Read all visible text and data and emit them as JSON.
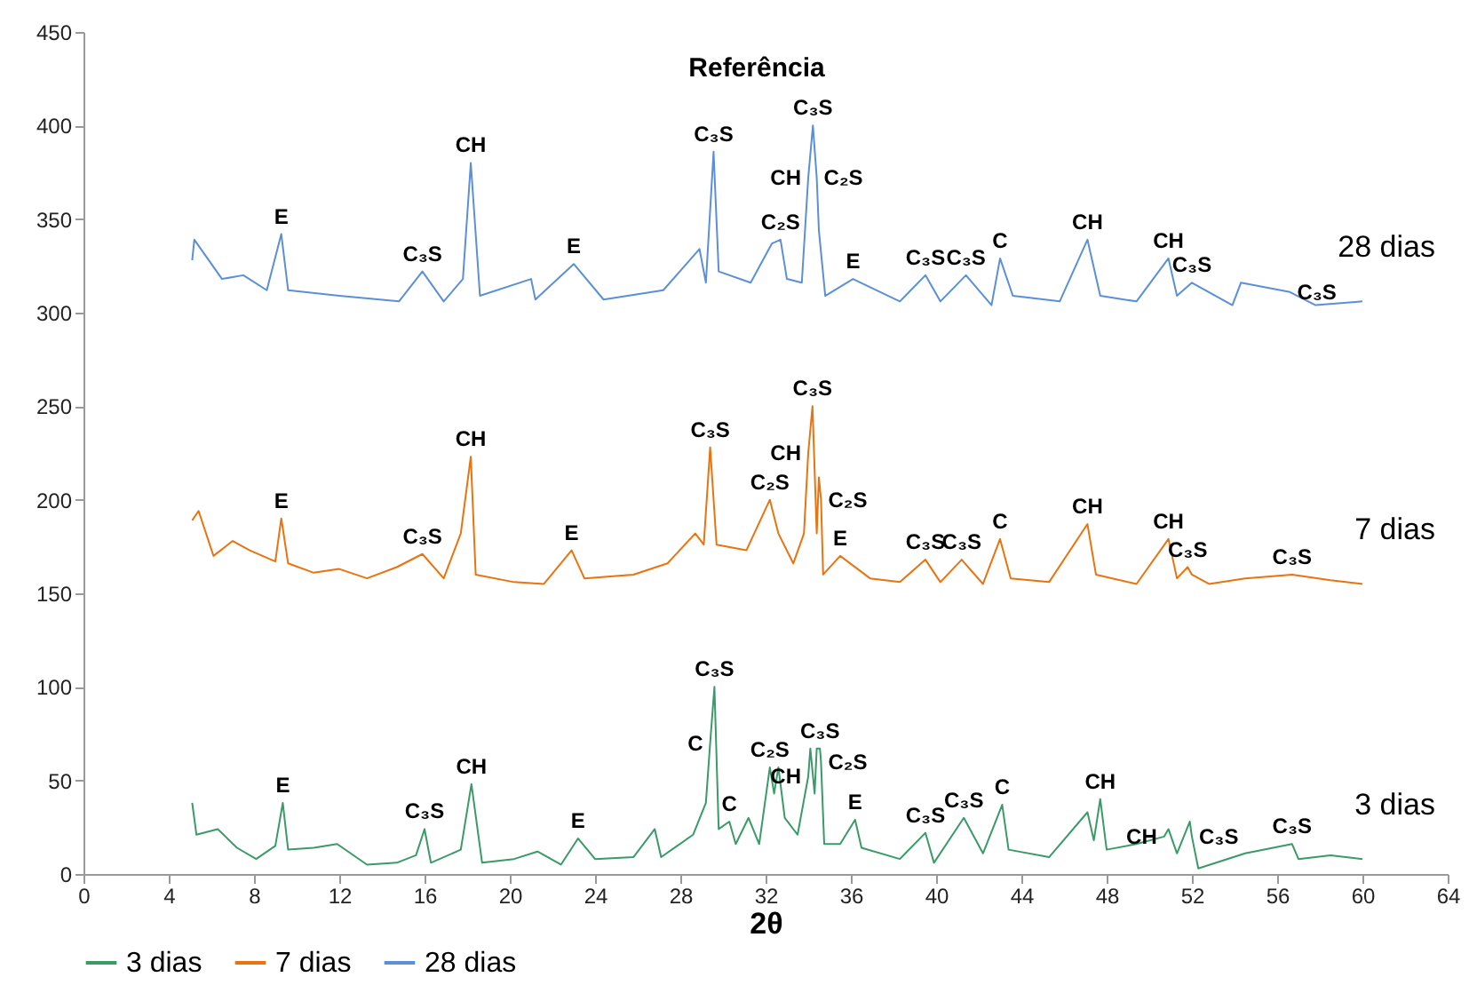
{
  "chart_data": {
    "type": "line",
    "title": "Referência",
    "xlabel": "2θ",
    "xlim": [
      0,
      64
    ],
    "xticks": [
      0,
      4,
      8,
      12,
      16,
      20,
      24,
      28,
      32,
      36,
      40,
      44,
      48,
      52,
      56,
      60,
      64
    ],
    "ylim": [
      0,
      450
    ],
    "yticks": [
      0,
      50,
      100,
      150,
      200,
      250,
      300,
      350,
      400,
      450
    ],
    "legend": "bottom",
    "series": [
      {
        "name": "3 dias",
        "color": "#3a9a68",
        "x": [
          5.1,
          5.3,
          6.3,
          7.2,
          8.1,
          9.0,
          9.35,
          9.6,
          10.8,
          11.9,
          13.3,
          14.7,
          15.6,
          16.0,
          16.3,
          17.7,
          18.2,
          18.7,
          20.2,
          21.3,
          22.4,
          23.2,
          24.0,
          25.8,
          26.8,
          27.1,
          28.6,
          29.2,
          29.4,
          29.6,
          29.8,
          30.3,
          30.6,
          31.2,
          31.7,
          32.2,
          32.4,
          32.6,
          32.9,
          33.5,
          34.0,
          34.1,
          34.3,
          34.4,
          34.55,
          34.6,
          34.75,
          35.5,
          36.2,
          36.5,
          38.3,
          39.5,
          39.9,
          41.3,
          42.2,
          43.1,
          43.4,
          45.3,
          47.1,
          47.4,
          47.7,
          48.0,
          49.4,
          50.7,
          50.9,
          51.3,
          51.9,
          52.0,
          52.3,
          54.5,
          56.7,
          57.0,
          58.5,
          60
        ],
        "values": [
          38,
          21,
          24,
          14,
          8,
          15,
          38,
          13,
          14,
          16,
          5,
          6,
          10,
          24,
          6,
          13,
          48,
          6,
          8,
          12,
          5,
          19,
          8,
          9,
          24,
          9,
          21,
          38,
          70,
          100,
          24,
          28,
          16,
          30,
          16,
          57,
          43,
          57,
          30,
          21,
          52,
          67,
          43,
          67,
          67,
          60,
          16,
          16,
          29,
          14,
          8,
          22,
          6,
          30,
          11,
          37,
          13,
          9,
          33,
          18,
          40,
          13,
          16,
          20,
          24,
          11,
          28,
          20,
          3,
          11,
          16,
          8,
          10,
          8
        ]
      },
      {
        "name": "7 dias",
        "color": "#e8730f",
        "x": [
          5.1,
          5.4,
          6.1,
          7.0,
          7.8,
          9.0,
          9.28,
          9.6,
          10.8,
          12.0,
          13.3,
          14.7,
          15.9,
          16.9,
          17.7,
          18.17,
          18.4,
          20.2,
          21.6,
          22.9,
          23.5,
          25.8,
          27.4,
          28.7,
          29.1,
          29.4,
          29.7,
          31.1,
          32.2,
          32.6,
          33.3,
          33.8,
          34.0,
          34.2,
          34.4,
          34.5,
          34.6,
          34.7,
          35.5,
          36.9,
          38.3,
          39.5,
          40.2,
          41.2,
          42.2,
          43.0,
          43.5,
          45.3,
          47.1,
          47.5,
          49.4,
          50.9,
          51.3,
          51.8,
          52.0,
          52.8,
          54.5,
          56.7,
          58.5,
          60
        ],
        "values": [
          189,
          194,
          170,
          178,
          173,
          167,
          190,
          166,
          161,
          163,
          158,
          164,
          171,
          158,
          182,
          223,
          160,
          156,
          155,
          173,
          158,
          160,
          166,
          182,
          176,
          228,
          176,
          173,
          200,
          182,
          166,
          182,
          225,
          250,
          182,
          212,
          200,
          160,
          170,
          158,
          156,
          168,
          156,
          168,
          155,
          179,
          158,
          156,
          187,
          160,
          155,
          179,
          158,
          164,
          160,
          155,
          158,
          160,
          157,
          155
        ]
      },
      {
        "name": "28 dias",
        "color": "#5b8fd6",
        "x": [
          5.1,
          5.2,
          6.5,
          7.5,
          8.6,
          9.28,
          9.6,
          12.0,
          14.8,
          15.9,
          16.9,
          17.8,
          18.17,
          18.6,
          21.0,
          21.2,
          23.0,
          24.4,
          27.2,
          28.9,
          29.2,
          29.56,
          29.8,
          31.3,
          32.3,
          32.7,
          33.0,
          33.7,
          34.0,
          34.22,
          34.4,
          34.5,
          34.8,
          36.1,
          38.3,
          39.5,
          40.2,
          41.4,
          42.6,
          43.0,
          43.6,
          45.8,
          47.1,
          47.7,
          49.4,
          50.9,
          51.3,
          52.0,
          53.9,
          54.3,
          56.6,
          57.8,
          60
        ],
        "values": [
          328,
          339,
          318,
          320,
          312,
          342,
          312,
          309,
          306,
          322,
          306,
          318,
          380,
          309,
          318,
          307,
          326,
          307,
          312,
          334,
          316,
          386,
          322,
          316,
          337,
          339,
          318,
          316,
          372,
          400,
          372,
          344,
          309,
          318,
          306,
          320,
          306,
          320,
          304,
          329,
          309,
          306,
          339,
          309,
          306,
          329,
          309,
          316,
          304,
          316,
          311,
          304,
          306
        ]
      }
    ],
    "annotations": [
      {
        "text": "E",
        "x": 9.28,
        "y": 342
      },
      {
        "text": "C₃S",
        "x": 15.9,
        "y": 322
      },
      {
        "text": "CH",
        "x": 18.17,
        "y": 380
      },
      {
        "text": "E",
        "x": 23.0,
        "y": 326
      },
      {
        "text": "C₃S",
        "x": 29.56,
        "y": 386
      },
      {
        "text": "C₂S",
        "x": 32.7,
        "y": 339
      },
      {
        "text": "CH",
        "x": 34.0,
        "y": 372
      },
      {
        "text": "C₃S",
        "x": 34.22,
        "y": 400
      },
      {
        "text": "C₂S",
        "x": 34.4,
        "y": 372
      },
      {
        "text": "E",
        "x": 36.1,
        "y": 318
      },
      {
        "text": "C₃S",
        "x": 39.5,
        "y": 320
      },
      {
        "text": "C₃S",
        "x": 41.4,
        "y": 320
      },
      {
        "text": "C",
        "x": 43.0,
        "y": 329
      },
      {
        "text": "CH",
        "x": 47.1,
        "y": 339
      },
      {
        "text": "CH",
        "x": 50.9,
        "y": 329
      },
      {
        "text": "C₃S",
        "x": 52.0,
        "y": 316
      },
      {
        "text": "C₃S",
        "x": 56.6,
        "y": 311
      },
      {
        "text": "E",
        "x": 9.28,
        "y": 190
      },
      {
        "text": "C₃S",
        "x": 15.9,
        "y": 171
      },
      {
        "text": "CH",
        "x": 18.17,
        "y": 223
      },
      {
        "text": "E",
        "x": 22.9,
        "y": 173
      },
      {
        "text": "C₃S",
        "x": 29.4,
        "y": 228
      },
      {
        "text": "C₂S",
        "x": 32.2,
        "y": 200
      },
      {
        "text": "CH",
        "x": 34.0,
        "y": 225
      },
      {
        "text": "C₃S",
        "x": 34.2,
        "y": 250
      },
      {
        "text": "C₂S",
        "x": 34.6,
        "y": 200
      },
      {
        "text": "E",
        "x": 35.5,
        "y": 170
      },
      {
        "text": "C₃S",
        "x": 39.5,
        "y": 168
      },
      {
        "text": "C₃S",
        "x": 41.2,
        "y": 168
      },
      {
        "text": "C",
        "x": 43.0,
        "y": 179
      },
      {
        "text": "CH",
        "x": 47.1,
        "y": 187
      },
      {
        "text": "CH",
        "x": 50.9,
        "y": 179
      },
      {
        "text": "C₃S",
        "x": 51.8,
        "y": 164
      },
      {
        "text": "C₃S",
        "x": 56.7,
        "y": 160
      },
      {
        "text": "E",
        "x": 9.35,
        "y": 38
      },
      {
        "text": "C₃S",
        "x": 16.0,
        "y": 24
      },
      {
        "text": "CH",
        "x": 18.2,
        "y": 48
      },
      {
        "text": "E",
        "x": 23.2,
        "y": 19
      },
      {
        "text": "C₃S",
        "x": 29.6,
        "y": 100
      },
      {
        "text": "C",
        "x": 29.4,
        "y": 70
      },
      {
        "text": "C",
        "x": 30.3,
        "y": 28
      },
      {
        "text": "C₂S",
        "x": 32.2,
        "y": 57
      },
      {
        "text": "CH",
        "x": 34.0,
        "y": 52
      },
      {
        "text": "C₃S",
        "x": 34.55,
        "y": 67
      },
      {
        "text": "C₂S",
        "x": 34.6,
        "y": 60
      },
      {
        "text": "E",
        "x": 36.2,
        "y": 29
      },
      {
        "text": "C₃S",
        "x": 39.5,
        "y": 22
      },
      {
        "text": "C₃S",
        "x": 41.3,
        "y": 30
      },
      {
        "text": "C",
        "x": 43.1,
        "y": 37
      },
      {
        "text": "CH",
        "x": 47.7,
        "y": 40
      },
      {
        "text": "CH",
        "x": 50.7,
        "y": 20
      },
      {
        "text": "C₃S",
        "x": 52.0,
        "y": 20
      },
      {
        "text": "C₃S",
        "x": 56.7,
        "y": 16
      }
    ]
  }
}
